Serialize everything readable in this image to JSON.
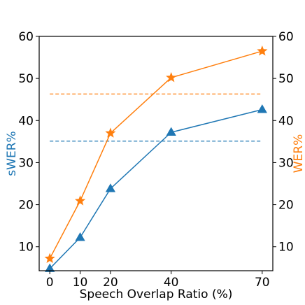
{
  "chart_data": {
    "type": "line",
    "title": "",
    "xlabel": "Speech Overlap Ratio (%)",
    "ylabel_left": "sWER%",
    "ylabel_right": "WER%",
    "x": [
      0,
      10,
      20,
      40,
      70
    ],
    "xticks": [
      0,
      10,
      20,
      40,
      70
    ],
    "yticks": [
      10,
      20,
      30,
      40,
      50,
      60
    ],
    "xlim": [
      -3.5,
      73.5
    ],
    "ylim": [
      4.3,
      60
    ],
    "grid": false,
    "series": [
      {
        "name": "",
        "axis": "left",
        "marker": "triangle",
        "color": "#1f77b4",
        "values": [
          4.8,
          12.2,
          23.8,
          37.2,
          42.6
        ]
      },
      {
        "name": "",
        "axis": "right",
        "marker": "star",
        "color": "#ff7f0e",
        "values": [
          7.2,
          20.9,
          37.0,
          50.2,
          56.5
        ]
      }
    ],
    "reference_lines": [
      {
        "axis": "left",
        "y": 35.1,
        "style": "dashed",
        "color": "#1f77b4"
      },
      {
        "axis": "right",
        "y": 46.3,
        "style": "dashed",
        "color": "#ff7f0e"
      }
    ]
  }
}
